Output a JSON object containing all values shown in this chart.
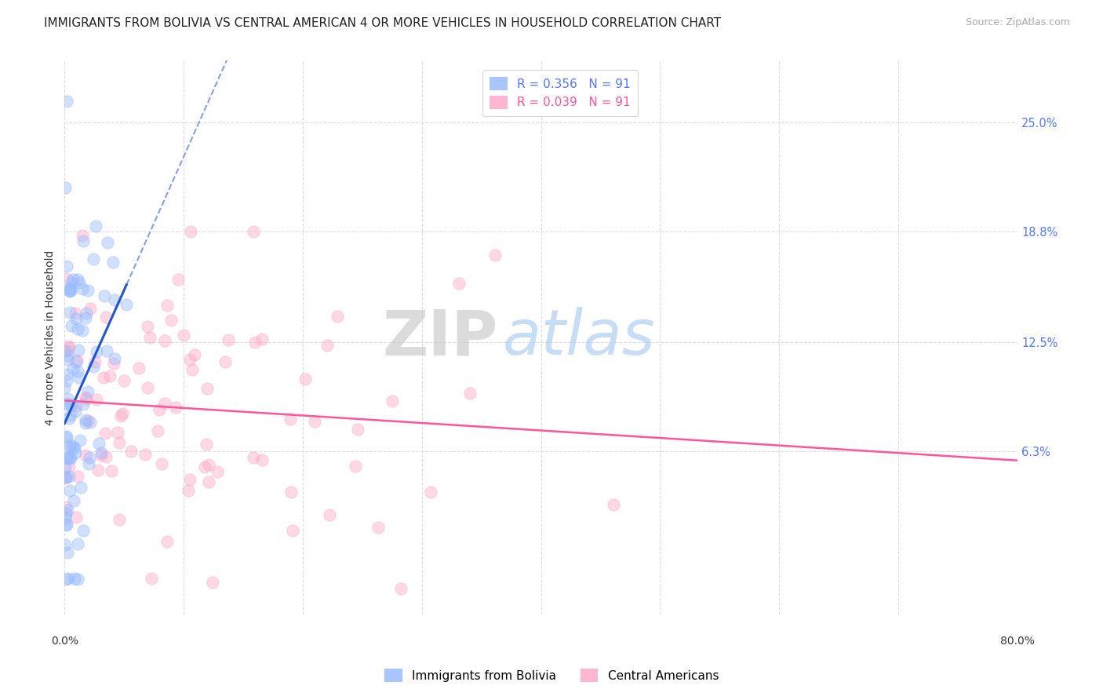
{
  "title": "IMMIGRANTS FROM BOLIVIA VS CENTRAL AMERICAN 4 OR MORE VEHICLES IN HOUSEHOLD CORRELATION CHART",
  "source": "Source: ZipAtlas.com",
  "ylabel": "4 or more Vehicles in Household",
  "ytick_labels": [
    "25.0%",
    "18.8%",
    "12.5%",
    "6.3%"
  ],
  "ytick_values": [
    0.25,
    0.188,
    0.125,
    0.063
  ],
  "xlim": [
    0.0,
    0.8
  ],
  "ylim": [
    -0.03,
    0.285
  ],
  "R_bolivia": 0.356,
  "N_bolivia": 91,
  "R_central": 0.039,
  "N_central": 91,
  "color_bolivia": "#99bbff",
  "color_central": "#ffaac8",
  "trendline_bolivia": "#2255cc",
  "trendline_central": "#ff5599",
  "legend_bolivia": "Immigrants from Bolivia",
  "legend_central": "Central Americans",
  "background_color": "#ffffff",
  "grid_color": "#dddddd",
  "watermark_zip": "ZIP",
  "watermark_atlas": "atlas",
  "watermark_zip_color": "#cccccc",
  "watermark_atlas_color": "#aaccee",
  "title_fontsize": 11,
  "axis_fontsize": 10,
  "legend_fontsize": 11,
  "scatter_size": 120,
  "scatter_alpha": 0.45,
  "seed": 42
}
